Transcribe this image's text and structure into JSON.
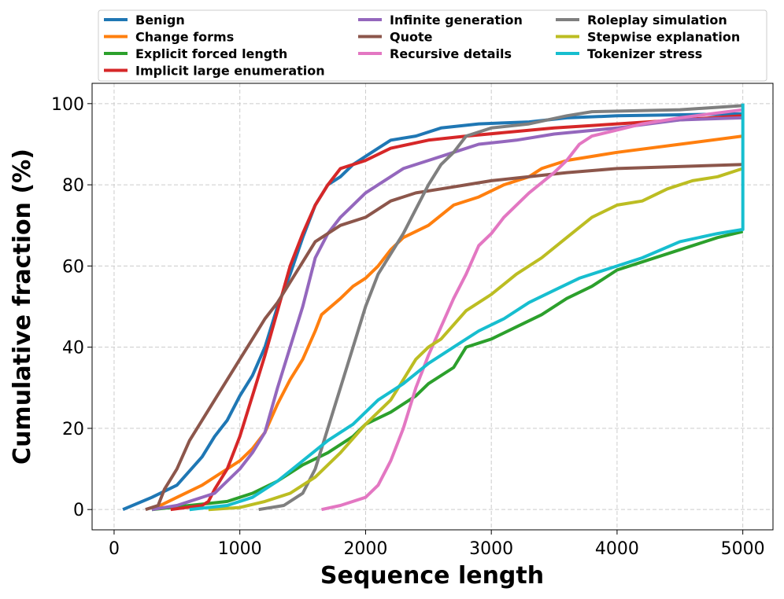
{
  "chart_data": {
    "type": "line",
    "title": "",
    "xlabel": "Sequence length",
    "ylabel": "Cumulative fraction (%)",
    "xlim": [
      -175,
      5240
    ],
    "ylim": [
      -5,
      105
    ],
    "xticks": [
      0,
      1000,
      2000,
      3000,
      4000,
      5000
    ],
    "yticks": [
      0,
      20,
      40,
      60,
      80,
      100
    ],
    "grid": true,
    "legend_placement": "top-center",
    "series": [
      {
        "name": "Benign",
        "color": "#1f77b4",
        "points": [
          [
            70,
            0
          ],
          [
            300,
            3
          ],
          [
            500,
            6
          ],
          [
            700,
            13
          ],
          [
            800,
            18
          ],
          [
            900,
            22
          ],
          [
            1000,
            28
          ],
          [
            1100,
            33
          ],
          [
            1200,
            40
          ],
          [
            1300,
            50
          ],
          [
            1400,
            58
          ],
          [
            1500,
            67
          ],
          [
            1600,
            75
          ],
          [
            1700,
            80
          ],
          [
            1800,
            82
          ],
          [
            1900,
            85
          ],
          [
            2000,
            87
          ],
          [
            2100,
            89
          ],
          [
            2200,
            91
          ],
          [
            2400,
            92
          ],
          [
            2600,
            94
          ],
          [
            2900,
            95
          ],
          [
            3300,
            95.5
          ],
          [
            3600,
            96.5
          ],
          [
            4000,
            97
          ],
          [
            5000,
            97.5
          ]
        ]
      },
      {
        "name": "Change forms",
        "color": "#ff7f0e",
        "points": [
          [
            300,
            0
          ],
          [
            500,
            3
          ],
          [
            700,
            6
          ],
          [
            900,
            10
          ],
          [
            1000,
            12
          ],
          [
            1100,
            15
          ],
          [
            1200,
            19
          ],
          [
            1300,
            26
          ],
          [
            1400,
            32
          ],
          [
            1500,
            37
          ],
          [
            1600,
            44
          ],
          [
            1650,
            48
          ],
          [
            1800,
            52
          ],
          [
            1900,
            55
          ],
          [
            2000,
            57
          ],
          [
            2100,
            60
          ],
          [
            2200,
            64
          ],
          [
            2300,
            67
          ],
          [
            2500,
            70
          ],
          [
            2700,
            75
          ],
          [
            2900,
            77
          ],
          [
            3100,
            80
          ],
          [
            3300,
            82
          ],
          [
            3400,
            84
          ],
          [
            3600,
            86
          ],
          [
            4000,
            88
          ],
          [
            4500,
            90
          ],
          [
            5000,
            92
          ]
        ]
      },
      {
        "name": "Explicit forced length",
        "color": "#2ca02c",
        "points": [
          [
            300,
            0
          ],
          [
            600,
            1
          ],
          [
            900,
            2
          ],
          [
            1100,
            4
          ],
          [
            1300,
            7
          ],
          [
            1500,
            11
          ],
          [
            1700,
            14
          ],
          [
            1900,
            18
          ],
          [
            2000,
            21
          ],
          [
            2200,
            24
          ],
          [
            2400,
            28
          ],
          [
            2500,
            31
          ],
          [
            2700,
            35
          ],
          [
            2800,
            40
          ],
          [
            3000,
            42
          ],
          [
            3200,
            45
          ],
          [
            3400,
            48
          ],
          [
            3600,
            52
          ],
          [
            3800,
            55
          ],
          [
            4000,
            59
          ],
          [
            4200,
            61
          ],
          [
            4500,
            64
          ],
          [
            4800,
            67
          ],
          [
            5000,
            68.5
          ]
        ]
      },
      {
        "name": "Implicit large enumeration",
        "color": "#d62728",
        "points": [
          [
            450,
            0
          ],
          [
            700,
            1
          ],
          [
            750,
            2
          ],
          [
            800,
            5
          ],
          [
            900,
            10
          ],
          [
            1000,
            18
          ],
          [
            1100,
            28
          ],
          [
            1200,
            38
          ],
          [
            1300,
            49
          ],
          [
            1400,
            60
          ],
          [
            1500,
            68
          ],
          [
            1600,
            75
          ],
          [
            1700,
            80
          ],
          [
            1800,
            84
          ],
          [
            1900,
            85
          ],
          [
            2000,
            86
          ],
          [
            2200,
            89
          ],
          [
            2500,
            91
          ],
          [
            2800,
            92
          ],
          [
            3500,
            94
          ],
          [
            4000,
            95
          ],
          [
            5000,
            97
          ]
        ]
      },
      {
        "name": "Infinite generation",
        "color": "#9467bd",
        "points": [
          [
            300,
            0
          ],
          [
            500,
            1
          ],
          [
            800,
            4
          ],
          [
            1000,
            10
          ],
          [
            1100,
            14
          ],
          [
            1200,
            19
          ],
          [
            1300,
            30
          ],
          [
            1400,
            40
          ],
          [
            1500,
            50
          ],
          [
            1600,
            62
          ],
          [
            1700,
            68
          ],
          [
            1800,
            72
          ],
          [
            1900,
            75
          ],
          [
            2000,
            78
          ],
          [
            2100,
            80
          ],
          [
            2300,
            84
          ],
          [
            2500,
            86
          ],
          [
            2700,
            88
          ],
          [
            2900,
            90
          ],
          [
            3200,
            91
          ],
          [
            3500,
            92.5
          ],
          [
            4000,
            94
          ],
          [
            4500,
            96
          ],
          [
            5000,
            96.5
          ]
        ]
      },
      {
        "name": "Quote",
        "color": "#8c564b",
        "points": [
          [
            250,
            0
          ],
          [
            350,
            1
          ],
          [
            400,
            5
          ],
          [
            500,
            10
          ],
          [
            600,
            17
          ],
          [
            700,
            22
          ],
          [
            800,
            27
          ],
          [
            900,
            32
          ],
          [
            1000,
            37
          ],
          [
            1100,
            42
          ],
          [
            1200,
            47
          ],
          [
            1300,
            51
          ],
          [
            1400,
            56
          ],
          [
            1500,
            61
          ],
          [
            1600,
            66
          ],
          [
            1700,
            68
          ],
          [
            1800,
            70
          ],
          [
            2000,
            72
          ],
          [
            2200,
            76
          ],
          [
            2400,
            78
          ],
          [
            2600,
            79
          ],
          [
            2800,
            80
          ],
          [
            3000,
            81
          ],
          [
            3300,
            82
          ],
          [
            3600,
            83
          ],
          [
            4000,
            84
          ],
          [
            5000,
            85
          ]
        ]
      },
      {
        "name": "Recursive details",
        "color": "#e377c2",
        "points": [
          [
            1650,
            0
          ],
          [
            1800,
            1
          ],
          [
            2000,
            3
          ],
          [
            2100,
            6
          ],
          [
            2200,
            12
          ],
          [
            2300,
            20
          ],
          [
            2400,
            30
          ],
          [
            2500,
            38
          ],
          [
            2600,
            45
          ],
          [
            2700,
            52
          ],
          [
            2800,
            58
          ],
          [
            2900,
            65
          ],
          [
            3000,
            68
          ],
          [
            3100,
            72
          ],
          [
            3300,
            78
          ],
          [
            3500,
            83
          ],
          [
            3600,
            86
          ],
          [
            3700,
            90
          ],
          [
            3800,
            92
          ],
          [
            4000,
            93.5
          ],
          [
            4200,
            95
          ],
          [
            4500,
            96.5
          ],
          [
            5000,
            98.5
          ]
        ]
      },
      {
        "name": "Roleplay simulation",
        "color": "#7f7f7f",
        "points": [
          [
            1150,
            0
          ],
          [
            1350,
            1
          ],
          [
            1500,
            4
          ],
          [
            1600,
            10
          ],
          [
            1700,
            20
          ],
          [
            1800,
            30
          ],
          [
            1900,
            40
          ],
          [
            2000,
            50
          ],
          [
            2100,
            58
          ],
          [
            2200,
            63
          ],
          [
            2300,
            68
          ],
          [
            2400,
            74
          ],
          [
            2500,
            80
          ],
          [
            2600,
            85
          ],
          [
            2700,
            88
          ],
          [
            2800,
            92
          ],
          [
            3000,
            94
          ],
          [
            3300,
            95
          ],
          [
            3600,
            97
          ],
          [
            3800,
            98
          ],
          [
            4500,
            98.5
          ],
          [
            5000,
            99.5
          ]
        ]
      },
      {
        "name": "Stepwise explanation",
        "color": "#bcbd22",
        "points": [
          [
            750,
            0
          ],
          [
            1000,
            0.5
          ],
          [
            1200,
            2
          ],
          [
            1400,
            4
          ],
          [
            1600,
            8
          ],
          [
            1800,
            14
          ],
          [
            2000,
            21
          ],
          [
            2200,
            27
          ],
          [
            2300,
            32
          ],
          [
            2400,
            37
          ],
          [
            2500,
            40
          ],
          [
            2600,
            42
          ],
          [
            2800,
            49
          ],
          [
            3000,
            53
          ],
          [
            3200,
            58
          ],
          [
            3400,
            62
          ],
          [
            3600,
            67
          ],
          [
            3800,
            72
          ],
          [
            4000,
            75
          ],
          [
            4200,
            76
          ],
          [
            4400,
            79
          ],
          [
            4600,
            81
          ],
          [
            4800,
            82
          ],
          [
            5000,
            84
          ]
        ]
      },
      {
        "name": "Tokenizer stress",
        "color": "#17becf",
        "points": [
          [
            600,
            0
          ],
          [
            900,
            1
          ],
          [
            1100,
            3
          ],
          [
            1300,
            7
          ],
          [
            1500,
            12
          ],
          [
            1700,
            17
          ],
          [
            1900,
            21
          ],
          [
            2100,
            27
          ],
          [
            2300,
            31
          ],
          [
            2500,
            36
          ],
          [
            2700,
            40
          ],
          [
            2900,
            44
          ],
          [
            3100,
            47
          ],
          [
            3300,
            51
          ],
          [
            3500,
            54
          ],
          [
            3700,
            57
          ],
          [
            4000,
            60
          ],
          [
            4200,
            62
          ],
          [
            4500,
            66
          ],
          [
            4800,
            68
          ],
          [
            5000,
            69
          ],
          [
            5000,
            100
          ]
        ]
      }
    ]
  }
}
